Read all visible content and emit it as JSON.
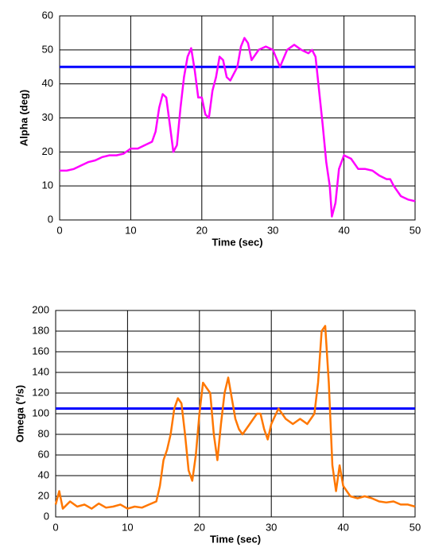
{
  "chart_data": [
    {
      "type": "line",
      "x_label": "Time (sec)",
      "y_label": "Alpha (deg)",
      "xlim": [
        0,
        50
      ],
      "xticks": [
        0,
        10,
        20,
        30,
        40,
        50
      ],
      "ylim": [
        0,
        60
      ],
      "yticks": [
        0,
        10,
        20,
        30,
        40,
        50,
        60
      ],
      "grid": true,
      "hline": {
        "value": 45,
        "color": "#0000ff"
      },
      "series": [
        {
          "color": "#ff00ff",
          "x": [
            0,
            1,
            2,
            3,
            4,
            5,
            6,
            7,
            8,
            9,
            10,
            11,
            12,
            13,
            13.5,
            14,
            14.5,
            15,
            15.5,
            16,
            16.5,
            17,
            17.5,
            18,
            18.5,
            19,
            19.5,
            20,
            20.5,
            21,
            21.5,
            22,
            22.5,
            23,
            23.5,
            24,
            25,
            25.5,
            26,
            26.5,
            27,
            28,
            29,
            30,
            31,
            32,
            33,
            34,
            35,
            35.5,
            36,
            37,
            37.5,
            38,
            38.3,
            38.8,
            39.3,
            40,
            41,
            42,
            43,
            44,
            45,
            46,
            46.5,
            47,
            48,
            49,
            50
          ],
          "values": [
            14.5,
            14.5,
            15,
            16,
            17,
            17.5,
            18.5,
            19,
            19,
            19.5,
            21,
            21,
            22,
            23,
            26,
            33,
            37,
            36,
            28,
            20,
            22,
            33,
            42,
            48,
            50.5,
            44,
            36,
            36,
            31,
            30,
            38,
            42,
            48,
            47,
            42,
            41,
            45,
            51,
            53.5,
            52,
            47,
            50,
            51,
            50,
            45,
            50,
            51.5,
            50,
            49,
            50,
            48,
            28,
            17,
            10,
            1,
            5,
            15,
            19,
            18,
            15,
            15,
            14.5,
            13,
            12,
            12,
            10,
            7,
            6,
            5.5
          ]
        }
      ]
    },
    {
      "type": "line",
      "x_label": "Time (sec)",
      "y_label": "Omega (°/s)",
      "xlim": [
        0,
        50
      ],
      "xticks": [
        0,
        10,
        20,
        30,
        40,
        50
      ],
      "ylim": [
        0,
        200
      ],
      "yticks": [
        0,
        20,
        40,
        60,
        80,
        100,
        120,
        140,
        160,
        180,
        200
      ],
      "grid": true,
      "hline": {
        "value": 105,
        "color": "#0000ff"
      },
      "series": [
        {
          "color": "#ff7700",
          "x": [
            0,
            0.5,
            1,
            2,
            3,
            4,
            5,
            6,
            7,
            8,
            9,
            10,
            11,
            12,
            13,
            14,
            14.5,
            15,
            15.5,
            16,
            16.5,
            17,
            17.5,
            18,
            18.5,
            19,
            19.5,
            20,
            20.5,
            21,
            21.5,
            22,
            22.5,
            23,
            23.5,
            24,
            24.5,
            25,
            25.5,
            26,
            27,
            28,
            28.5,
            29,
            29.5,
            30,
            31,
            32,
            33,
            34,
            35,
            36,
            36.5,
            37,
            37.5,
            38,
            38.5,
            39,
            39.5,
            40,
            41,
            42,
            43,
            44,
            45,
            46,
            47,
            48,
            49,
            50
          ],
          "values": [
            12,
            25,
            8,
            15,
            10,
            12,
            8,
            13,
            9,
            10,
            12,
            8,
            10,
            9,
            12,
            15,
            30,
            55,
            65,
            80,
            105,
            115,
            110,
            80,
            45,
            35,
            60,
            100,
            130,
            125,
            120,
            80,
            55,
            90,
            120,
            135,
            115,
            95,
            85,
            80,
            90,
            100,
            100,
            85,
            75,
            90,
            105,
            95,
            90,
            95,
            90,
            100,
            130,
            180,
            185,
            130,
            50,
            25,
            50,
            30,
            20,
            18,
            20,
            18,
            15,
            14,
            15,
            12,
            12,
            10
          ]
        }
      ]
    }
  ]
}
